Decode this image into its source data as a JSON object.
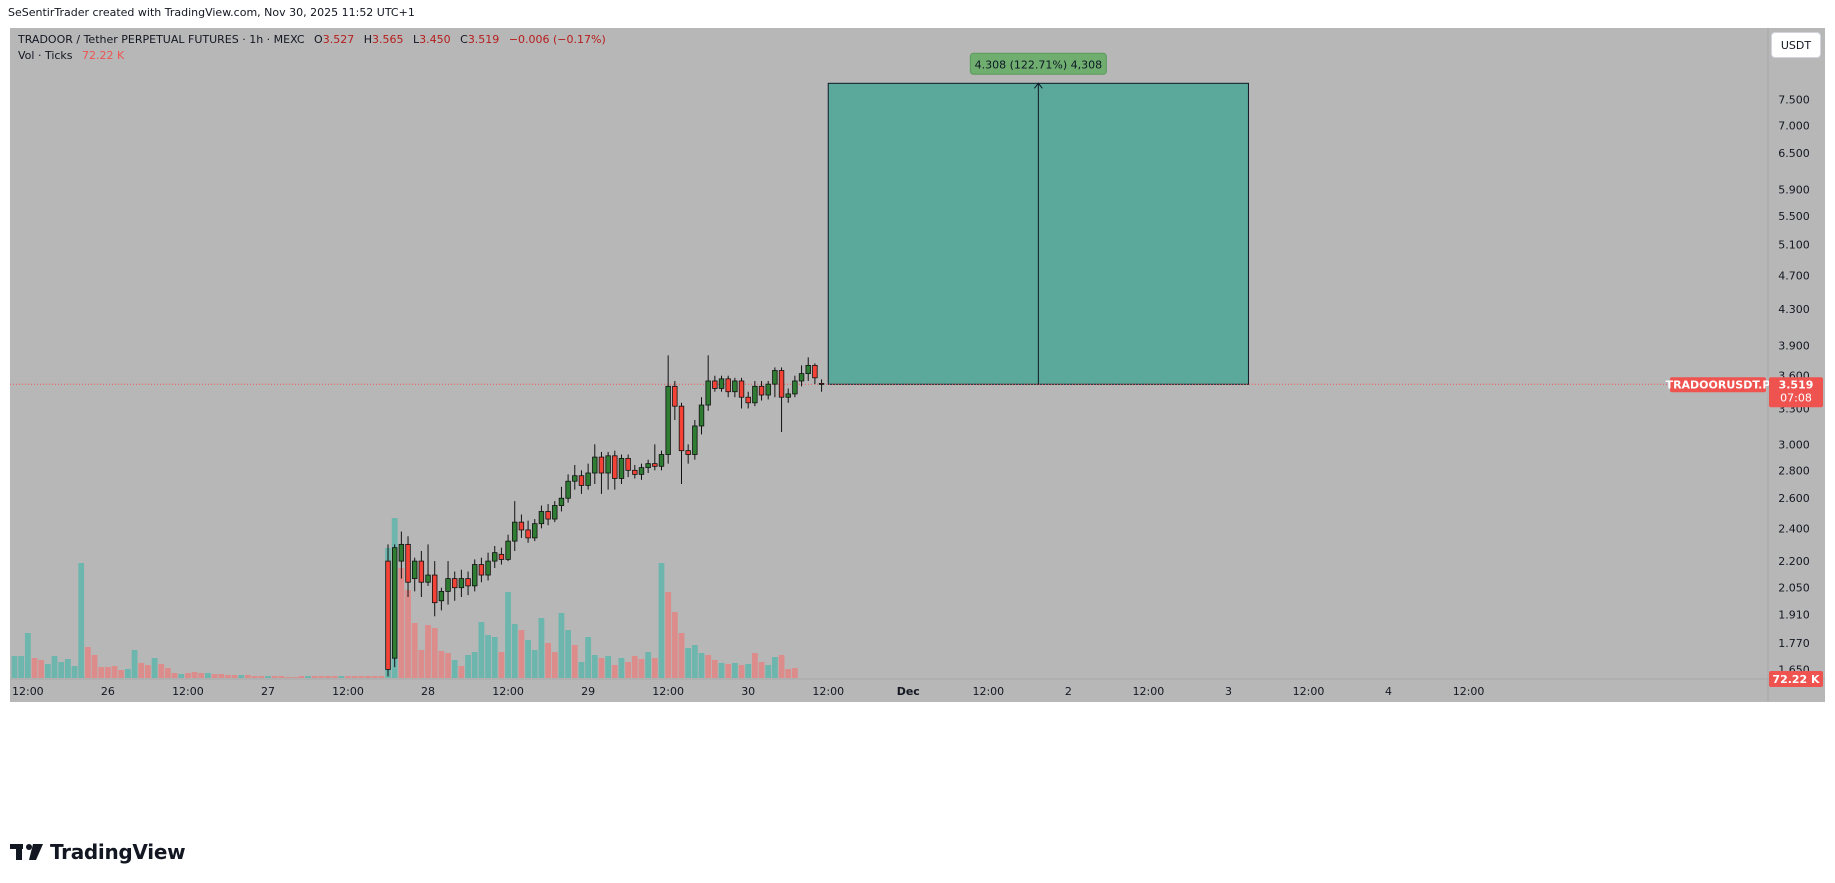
{
  "caption": "SeSentirTrader created with TradingView.com, Nov 30, 2025 11:52 UTC+1",
  "brand": "TradingView",
  "currency_button": "USDT",
  "legend": {
    "symbol_line": "TRADOOR / Tether PERPETUAL FUTURES · 1h · MEXC",
    "o_label": "O",
    "o_value": "3.527",
    "h_label": "H",
    "h_value": "3.565",
    "l_label": "L",
    "l_value": "3.450",
    "c_label": "C",
    "c_value": "3.519",
    "change": "−0.006 (−0.17%)",
    "vol_label": "Vol · Ticks",
    "vol_value": "72.22 K"
  },
  "price_tag": {
    "symbol": "TRADOORUSDT.P",
    "price": "3.519",
    "countdown": "07:08"
  },
  "volume_tag": "72.22 K",
  "measure_label": "4.308 (122.71%) 4,308",
  "colors": {
    "background": "#b7b7b7",
    "up": "#26a69a",
    "down": "#ef5350",
    "up_body": "#2e7d32",
    "down_body": "#f44336",
    "vol_up": "#6db6ae",
    "vol_down": "#dc8d8b",
    "measure_fill": "#5aa99a",
    "measure_label_bg": "#6fae6f",
    "price_tag": "#ef5350"
  },
  "chart_data": {
    "type": "candlestick",
    "scale": "log",
    "timeframe": "1h",
    "y_ticks": [
      7.5,
      7.0,
      6.5,
      5.9,
      5.5,
      5.1,
      4.7,
      4.3,
      3.9,
      3.6,
      3.3,
      3.0,
      2.8,
      2.6,
      2.4,
      2.2,
      2.05,
      1.91,
      1.77,
      1.65
    ],
    "y_tick_labels": [
      "7.500",
      "7.000",
      "6.500",
      "5.900",
      "5.500",
      "5.100",
      "4.700",
      "4.300",
      "3.900",
      "3.600",
      "3.300",
      "3.000",
      "2.800",
      "2.600",
      "2.400",
      "2.200",
      "2.050",
      "1.910",
      "1.770",
      "1.650"
    ],
    "x_tick_labels": [
      {
        "label": "12:00",
        "bar": 2
      },
      {
        "label": "26",
        "bar": 14
      },
      {
        "label": "12:00",
        "bar": 26
      },
      {
        "label": "27",
        "bar": 38
      },
      {
        "label": "12:00",
        "bar": 50
      },
      {
        "label": "28",
        "bar": 62
      },
      {
        "label": "12:00",
        "bar": 74
      },
      {
        "label": "29",
        "bar": 86
      },
      {
        "label": "12:00",
        "bar": 98
      },
      {
        "label": "30",
        "bar": 110
      },
      {
        "label": "12:00",
        "bar": 122
      },
      {
        "label": "Dec",
        "bar": 134,
        "bold": true
      },
      {
        "label": "12:00",
        "bar": 146
      },
      {
        "label": "2",
        "bar": 158
      },
      {
        "label": "12:00",
        "bar": 170
      },
      {
        "label": "3",
        "bar": 182
      },
      {
        "label": "12:00",
        "bar": 194
      },
      {
        "label": "4",
        "bar": 206
      },
      {
        "label": "12:00",
        "bar": 218
      }
    ],
    "candles": [
      [
        56,
        2.2,
        1.65,
        2.3,
        1.62
      ],
      [
        57,
        1.7,
        2.28,
        2.3,
        1.66
      ],
      [
        58,
        2.2,
        2.3,
        2.38,
        2.1
      ],
      [
        59,
        2.3,
        2.08,
        2.35,
        2.0
      ],
      [
        60,
        2.1,
        2.2,
        2.22,
        2.03
      ],
      [
        61,
        2.2,
        2.08,
        2.26,
        2.0
      ],
      [
        62,
        2.08,
        2.12,
        2.3,
        2.06
      ],
      [
        63,
        2.12,
        1.97,
        2.2,
        1.9
      ],
      [
        64,
        1.98,
        2.03,
        2.05,
        1.93
      ],
      [
        65,
        2.03,
        2.1,
        2.2,
        1.96
      ],
      [
        66,
        2.1,
        2.05,
        2.14,
        1.98
      ],
      [
        67,
        2.05,
        2.1,
        2.15,
        2.0
      ],
      [
        68,
        2.1,
        2.06,
        2.14,
        2.01
      ],
      [
        69,
        2.06,
        2.18,
        2.21,
        2.03
      ],
      [
        70,
        2.18,
        2.12,
        2.22,
        2.08
      ],
      [
        71,
        2.12,
        2.2,
        2.25,
        2.09
      ],
      [
        72,
        2.2,
        2.25,
        2.29,
        2.16
      ],
      [
        73,
        2.24,
        2.21,
        2.28,
        2.18
      ],
      [
        74,
        2.21,
        2.32,
        2.36,
        2.2
      ],
      [
        75,
        2.32,
        2.44,
        2.58,
        2.26
      ],
      [
        76,
        2.44,
        2.39,
        2.49,
        2.34
      ],
      [
        77,
        2.39,
        2.34,
        2.45,
        2.31
      ],
      [
        78,
        2.34,
        2.43,
        2.46,
        2.32
      ],
      [
        79,
        2.43,
        2.51,
        2.55,
        2.4
      ],
      [
        80,
        2.51,
        2.46,
        2.56,
        2.42
      ],
      [
        81,
        2.46,
        2.55,
        2.58,
        2.44
      ],
      [
        82,
        2.55,
        2.6,
        2.68,
        2.51
      ],
      [
        83,
        2.6,
        2.72,
        2.77,
        2.57
      ],
      [
        84,
        2.72,
        2.76,
        2.84,
        2.66
      ],
      [
        85,
        2.76,
        2.69,
        2.8,
        2.63
      ],
      [
        86,
        2.69,
        2.78,
        2.85,
        2.66
      ],
      [
        87,
        2.78,
        2.9,
        3.0,
        2.7
      ],
      [
        88,
        2.9,
        2.78,
        2.94,
        2.63
      ],
      [
        89,
        2.78,
        2.91,
        2.94,
        2.66
      ],
      [
        90,
        2.91,
        2.74,
        2.95,
        2.66
      ],
      [
        91,
        2.74,
        2.89,
        2.92,
        2.7
      ],
      [
        92,
        2.89,
        2.8,
        2.92,
        2.75
      ],
      [
        93,
        2.8,
        2.77,
        2.84,
        2.74
      ],
      [
        94,
        2.77,
        2.82,
        2.85,
        2.73
      ],
      [
        95,
        2.82,
        2.85,
        2.88,
        2.78
      ],
      [
        96,
        2.85,
        2.83,
        3.0,
        2.8
      ],
      [
        97,
        2.83,
        2.92,
        2.95,
        2.8
      ],
      [
        98,
        2.92,
        3.5,
        3.8,
        2.85
      ],
      [
        99,
        3.5,
        3.32,
        3.55,
        3.2
      ],
      [
        100,
        3.32,
        2.95,
        3.35,
        2.7
      ],
      [
        101,
        2.95,
        2.92,
        3.0,
        2.85
      ],
      [
        102,
        2.92,
        3.15,
        3.2,
        2.88
      ],
      [
        103,
        3.15,
        3.33,
        3.4,
        3.08
      ],
      [
        104,
        3.33,
        3.55,
        3.8,
        3.28
      ],
      [
        105,
        3.55,
        3.48,
        3.6,
        3.45
      ],
      [
        106,
        3.48,
        3.57,
        3.6,
        3.45
      ],
      [
        107,
        3.57,
        3.45,
        3.6,
        3.4
      ],
      [
        108,
        3.45,
        3.55,
        3.58,
        3.4
      ],
      [
        109,
        3.55,
        3.4,
        3.58,
        3.3
      ],
      [
        110,
        3.4,
        3.35,
        3.45,
        3.3
      ],
      [
        111,
        3.35,
        3.5,
        3.55,
        3.32
      ],
      [
        112,
        3.5,
        3.42,
        3.55,
        3.37
      ],
      [
        113,
        3.42,
        3.52,
        3.55,
        3.38
      ],
      [
        114,
        3.52,
        3.65,
        3.68,
        3.4
      ],
      [
        115,
        3.65,
        3.4,
        3.68,
        3.1
      ],
      [
        116,
        3.4,
        3.43,
        3.48,
        3.35
      ],
      [
        117,
        3.43,
        3.55,
        3.6,
        3.4
      ],
      [
        118,
        3.55,
        3.62,
        3.7,
        3.5
      ],
      [
        119,
        3.62,
        3.7,
        3.78,
        3.55
      ],
      [
        120,
        3.7,
        3.58,
        3.72,
        3.52
      ],
      [
        121,
        3.527,
        3.519,
        3.565,
        3.45
      ]
    ],
    "volume_series_name": "Vol · Ticks",
    "volume": [
      [
        0,
        22,
        1
      ],
      [
        1,
        22,
        1
      ],
      [
        2,
        45,
        1
      ],
      [
        3,
        20,
        0
      ],
      [
        4,
        18,
        0
      ],
      [
        5,
        14,
        1
      ],
      [
        6,
        22,
        1
      ],
      [
        7,
        16,
        1
      ],
      [
        8,
        19,
        1
      ],
      [
        9,
        12,
        1
      ],
      [
        10,
        115,
        1
      ],
      [
        11,
        31,
        0
      ],
      [
        12,
        23,
        0
      ],
      [
        13,
        11,
        0
      ],
      [
        14,
        11,
        0
      ],
      [
        15,
        12,
        0
      ],
      [
        16,
        8,
        0
      ],
      [
        17,
        9,
        1
      ],
      [
        18,
        28,
        1
      ],
      [
        19,
        15,
        0
      ],
      [
        20,
        13,
        0
      ],
      [
        21,
        20,
        1
      ],
      [
        22,
        14,
        0
      ],
      [
        23,
        10,
        0
      ],
      [
        24,
        5,
        0
      ],
      [
        25,
        4,
        1
      ],
      [
        26,
        5,
        0
      ],
      [
        27,
        6,
        0
      ],
      [
        28,
        5,
        0
      ],
      [
        29,
        5,
        1
      ],
      [
        30,
        4,
        0
      ],
      [
        31,
        4,
        0
      ],
      [
        32,
        3,
        0
      ],
      [
        33,
        3,
        0
      ],
      [
        34,
        3,
        1
      ],
      [
        35,
        3,
        0
      ],
      [
        36,
        2,
        0
      ],
      [
        37,
        2,
        0
      ],
      [
        38,
        2,
        1
      ],
      [
        39,
        2,
        0
      ],
      [
        40,
        2,
        0
      ],
      [
        41,
        1,
        0
      ],
      [
        42,
        1,
        0
      ],
      [
        43,
        2,
        0
      ],
      [
        44,
        2,
        1
      ],
      [
        45,
        2,
        0
      ],
      [
        46,
        2,
        0
      ],
      [
        47,
        2,
        0
      ],
      [
        48,
        2,
        0
      ],
      [
        49,
        2,
        1
      ],
      [
        50,
        2,
        0
      ],
      [
        51,
        2,
        0
      ],
      [
        52,
        2,
        0
      ],
      [
        53,
        2,
        0
      ],
      [
        54,
        2,
        0
      ],
      [
        55,
        2,
        0
      ],
      [
        56,
        130,
        1
      ],
      [
        57,
        160,
        1
      ],
      [
        58,
        110,
        0
      ],
      [
        59,
        88,
        0
      ],
      [
        60,
        55,
        0
      ],
      [
        61,
        28,
        0
      ],
      [
        62,
        53,
        0
      ],
      [
        63,
        50,
        0
      ],
      [
        64,
        27,
        0
      ],
      [
        65,
        25,
        0
      ],
      [
        66,
        18,
        1
      ],
      [
        67,
        12,
        0
      ],
      [
        68,
        23,
        1
      ],
      [
        69,
        26,
        1
      ],
      [
        70,
        56,
        1
      ],
      [
        71,
        43,
        1
      ],
      [
        72,
        41,
        1
      ],
      [
        73,
        26,
        0
      ],
      [
        74,
        86,
        1
      ],
      [
        75,
        54,
        1
      ],
      [
        76,
        48,
        0
      ],
      [
        77,
        38,
        1
      ],
      [
        78,
        28,
        1
      ],
      [
        79,
        60,
        1
      ],
      [
        80,
        35,
        0
      ],
      [
        81,
        26,
        0
      ],
      [
        82,
        65,
        1
      ],
      [
        83,
        48,
        1
      ],
      [
        84,
        33,
        0
      ],
      [
        85,
        16,
        1
      ],
      [
        86,
        41,
        1
      ],
      [
        87,
        23,
        1
      ],
      [
        88,
        20,
        0
      ],
      [
        89,
        22,
        1
      ],
      [
        90,
        13,
        0
      ],
      [
        91,
        20,
        1
      ],
      [
        92,
        16,
        0
      ],
      [
        93,
        22,
        0
      ],
      [
        94,
        19,
        0
      ],
      [
        95,
        26,
        1
      ],
      [
        96,
        20,
        0
      ],
      [
        97,
        115,
        1
      ],
      [
        98,
        86,
        0
      ],
      [
        99,
        66,
        0
      ],
      [
        100,
        45,
        0
      ],
      [
        101,
        30,
        1
      ],
      [
        102,
        33,
        1
      ],
      [
        103,
        25,
        1
      ],
      [
        104,
        23,
        0
      ],
      [
        105,
        18,
        0
      ],
      [
        106,
        15,
        1
      ],
      [
        107,
        14,
        0
      ],
      [
        108,
        15,
        1
      ],
      [
        109,
        13,
        0
      ],
      [
        110,
        14,
        1
      ],
      [
        111,
        25,
        0
      ],
      [
        112,
        16,
        0
      ],
      [
        113,
        13,
        1
      ],
      [
        114,
        21,
        1
      ],
      [
        115,
        23,
        0
      ],
      [
        116,
        9,
        0
      ],
      [
        117,
        10,
        0
      ]
    ],
    "current_price": 3.519,
    "measure": {
      "from_price": 3.519,
      "to_price": 7.827,
      "change": 4.308,
      "percent": 122.71,
      "from_bar": 122,
      "to_bar": 185
    }
  }
}
